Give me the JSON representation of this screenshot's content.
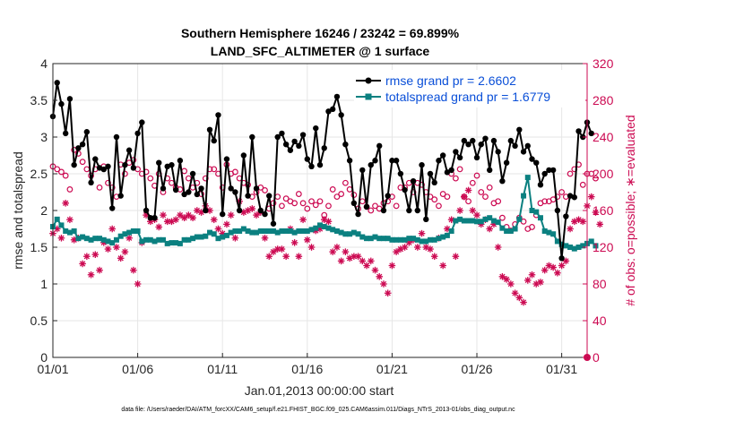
{
  "chart_data": {
    "type": "line",
    "title": "Southern Hemisphere 16246 / 23242 = 69.899%",
    "subtitle": "LAND_SFC_ALTIMETER @ 1 surface",
    "xlabel": "Jan.01,2013 00:00:00 start",
    "ylabel": "rmse and totalspread",
    "ylabel_right": "# of obs: o=possible; ∗=evaluated",
    "footer": "data file: /Users/raeder/DAI/ATM_forcXX/CAM6_setup/f.e21.FHIST_BGC.f09_025.CAM6assim.011/Diags_NTrS_2013-01/obs_diag_output.nc",
    "xlim": [
      1,
      32.5
    ],
    "ylim": [
      0,
      4
    ],
    "ylim_right": [
      0,
      320
    ],
    "x_ticks": [
      1,
      6,
      11,
      16,
      21,
      26,
      31
    ],
    "x_ticklabels": [
      "01/01",
      "01/06",
      "01/11",
      "01/16",
      "01/21",
      "01/26",
      "01/31"
    ],
    "y_ticks": [
      0,
      0.5,
      1,
      1.5,
      2,
      2.5,
      3,
      3.5,
      4
    ],
    "y_ticklabels": [
      "0",
      "0.5",
      "1",
      "1.5",
      "2",
      "2.5",
      "3",
      "3.5",
      "4"
    ],
    "y_ticks_right": [
      0,
      40,
      80,
      120,
      160,
      200,
      240,
      280,
      320
    ],
    "y_ticklabels_right": [
      "0",
      "40",
      "80",
      "120",
      "160",
      "200",
      "240",
      "280",
      "320"
    ],
    "grid": true,
    "legend_position": "top-right",
    "x_start": 1,
    "x_step": 0.25,
    "series": [
      {
        "name": "rmse grand pr = 2.6602",
        "axis": "left",
        "color": "#000000",
        "marker": "filled-circle",
        "values": [
          3.28,
          3.74,
          3.45,
          3.05,
          3.52,
          2.62,
          2.85,
          2.9,
          3.07,
          2.38,
          2.7,
          2.58,
          2.56,
          2.6,
          2.03,
          3.0,
          2.2,
          2.62,
          2.82,
          2.58,
          3.05,
          3.2,
          2.0,
          1.9,
          1.9,
          2.65,
          2.3,
          2.6,
          2.62,
          2.28,
          2.68,
          2.22,
          2.25,
          2.5,
          2.22,
          2.3,
          2.0,
          3.1,
          2.95,
          3.3,
          1.95,
          2.7,
          2.3,
          2.25,
          2.0,
          2.75,
          2.2,
          3.0,
          2.3,
          2.0,
          1.95,
          2.2,
          1.82,
          3.0,
          3.05,
          2.9,
          2.82,
          2.94,
          2.88,
          3.03,
          2.7,
          2.6,
          3.12,
          2.62,
          2.85,
          3.35,
          3.38,
          3.55,
          3.3,
          2.9,
          2.68,
          2.1,
          1.95,
          2.55,
          2.05,
          2.62,
          2.68,
          2.88,
          2.0,
          2.2,
          2.68,
          2.68,
          2.5,
          2.28,
          2.0,
          2.4,
          2.0,
          2.62,
          1.88,
          2.5,
          2.38,
          2.68,
          2.75,
          2.52,
          2.55,
          2.8,
          2.72,
          2.95,
          2.9,
          2.95,
          2.72,
          2.9,
          2.98,
          2.55,
          2.95,
          2.8,
          2.4,
          2.65,
          2.95,
          2.88,
          3.1,
          2.8,
          2.88,
          2.7,
          2.65,
          2.35,
          2.5,
          2.55,
          2.55,
          2.0,
          1.35,
          1.92,
          2.2,
          2.18,
          3.08,
          3.0,
          3.2,
          3.05
        ]
      },
      {
        "name": "totalspread grand pr = 1.6779",
        "axis": "left",
        "color": "#0b8080",
        "marker": "filled-square",
        "values": [
          1.78,
          1.88,
          1.8,
          1.72,
          1.7,
          1.72,
          1.62,
          1.64,
          1.62,
          1.6,
          1.62,
          1.62,
          1.6,
          1.58,
          1.56,
          1.6,
          1.65,
          1.68,
          1.7,
          1.72,
          1.72,
          1.58,
          1.6,
          1.6,
          1.58,
          1.6,
          1.6,
          1.55,
          1.56,
          1.56,
          1.55,
          1.6,
          1.6,
          1.62,
          1.64,
          1.64,
          1.65,
          1.7,
          1.68,
          1.62,
          1.64,
          1.66,
          1.7,
          1.72,
          1.72,
          1.75,
          1.72,
          1.7,
          1.7,
          1.72,
          1.72,
          1.72,
          1.72,
          1.7,
          1.72,
          1.72,
          1.72,
          1.7,
          1.72,
          1.72,
          1.72,
          1.74,
          1.76,
          1.8,
          1.78,
          1.76,
          1.74,
          1.72,
          1.7,
          1.68,
          1.68,
          1.7,
          1.68,
          1.64,
          1.62,
          1.62,
          1.64,
          1.62,
          1.62,
          1.62,
          1.6,
          1.6,
          1.6,
          1.6,
          1.62,
          1.62,
          1.6,
          1.58,
          1.58,
          1.6,
          1.6,
          1.62,
          1.64,
          1.66,
          1.72,
          1.86,
          1.88,
          1.86,
          1.86,
          1.86,
          1.85,
          1.85,
          1.88,
          1.9,
          1.86,
          1.84,
          1.76,
          1.72,
          1.72,
          1.75,
          1.88,
          2.2,
          2.45,
          2.0,
          1.98,
          1.9,
          1.72,
          1.7,
          1.68,
          1.58,
          1.54,
          1.52,
          1.5,
          1.48,
          1.5,
          1.52,
          1.55,
          1.58,
          1.52
        ]
      },
      {
        "name": "obs possible",
        "axis": "right",
        "color": "#cc0a52",
        "marker": "open-circle",
        "values": [
          208,
          205,
          202,
          198,
          183,
          226,
          222,
          213,
          205,
          198,
          205,
          185,
          208,
          190,
          185,
          175,
          210,
          200,
          212,
          215,
          205,
          200,
          202,
          195,
          187,
          200,
          180,
          195,
          190,
          185,
          183,
          203,
          195,
          185,
          190,
          178,
          195,
          205,
          205,
          200,
          185,
          210,
          200,
          202,
          195,
          190,
          188,
          175,
          180,
          185,
          182,
          162,
          168,
          175,
          165,
          173,
          170,
          168,
          178,
          168,
          162,
          170,
          166,
          170,
          155,
          165,
          183,
          175,
          178,
          190,
          183,
          177,
          162,
          170,
          164,
          160,
          165,
          162,
          168,
          170,
          175,
          165,
          185,
          185,
          190,
          180,
          190,
          188,
          180,
          175,
          172,
          165,
          178,
          175,
          200,
          195,
          205,
          175,
          170,
          190,
          198,
          180,
          175,
          185,
          168,
          170,
          152,
          142,
          138,
          145,
          152,
          148,
          140,
          142,
          155,
          168,
          170,
          170,
          172,
          175,
          180,
          175,
          200,
          205,
          210,
          188,
          200,
          200,
          195
        ]
      },
      {
        "name": "obs evaluated",
        "axis": "right",
        "color": "#cc0a52",
        "marker": "asterisk",
        "values": [
          135,
          140,
          130,
          168,
          150,
          128,
          130,
          102,
          110,
          90,
          112,
          95,
          125,
          118,
          140,
          120,
          108,
          115,
          130,
          95,
          80,
          125,
          155,
          148,
          150,
          142,
          155,
          148,
          148,
          150,
          155,
          152,
          155,
          152,
          160,
          158,
          165,
          160,
          150,
          140,
          135,
          145,
          155,
          130,
          170,
          158,
          160,
          162,
          155,
          158,
          130,
          110,
          115,
          118,
          118,
          110,
          140,
          125,
          110,
          150,
          128,
          120,
          138,
          140,
          150,
          148,
          115,
          120,
          105,
          115,
          108,
          110,
          110,
          105,
          100,
          105,
          95,
          88,
          80,
          70,
          100,
          115,
          118,
          120,
          125,
          128,
          120,
          135,
          120,
          118,
          110,
          130,
          100,
          140,
          150,
          110,
          160,
          175,
          182,
          160,
          155,
          145,
          150,
          140,
          145,
          120,
          88,
          85,
          80,
          70,
          65,
          60,
          84,
          90,
          80,
          82,
          95,
          100,
          98,
          92,
          100,
          105,
          140,
          148,
          150,
          148,
          165,
          175,
          158,
          145
        ]
      }
    ]
  }
}
